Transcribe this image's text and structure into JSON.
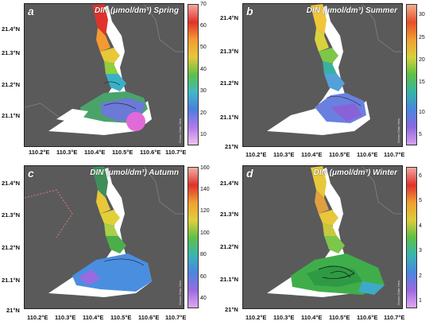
{
  "panels": [
    {
      "letter": "a",
      "title": "DIN (μmol/dm³)  Spring",
      "lat_labels": [
        "21.4°N",
        "21.3°N",
        "21.2°N",
        "21.1°N"
      ],
      "lon_labels": [
        "110.2°E",
        "110.3°E",
        "110.4°E",
        "110.5°E",
        "110.6°E",
        "110.7°E"
      ],
      "colorbar_ticks": [
        "70",
        "60",
        "50",
        "40",
        "30",
        "20",
        "10"
      ],
      "colorbar_range": [
        5,
        70
      ],
      "credit": "Ocean Data View",
      "scheme": "spring"
    },
    {
      "letter": "b",
      "title": "DIN (μmol/dm³)  Summer",
      "lat_labels": [
        "21.4°N",
        "21.3°N",
        "21.2°N",
        "21.1°N",
        "21°N"
      ],
      "lon_labels": [
        "110.2°E",
        "110.3°E",
        "110.4°E",
        "110.5°E",
        "110.6°E",
        "110.7°E"
      ],
      "colorbar_ticks": [
        "30",
        "25",
        "20",
        "15",
        "10",
        "5"
      ],
      "colorbar_range": [
        2,
        33
      ],
      "credit": "Ocean Data View",
      "scheme": "summer"
    },
    {
      "letter": "c",
      "title": "DIN (μmol/dm³)  Autumn",
      "lat_labels": [
        "21.4°N",
        "21.3°N",
        "21.2°N",
        "21.1°N",
        "21°N"
      ],
      "lon_labels": [
        "110.2°E",
        "110.3°E",
        "110.4°E",
        "110.5°E",
        "110.6°E",
        "110.7°E"
      ],
      "colorbar_ticks": [
        "160",
        "140",
        "120",
        "100",
        "80",
        "60",
        "40"
      ],
      "colorbar_range": [
        40,
        160
      ],
      "credit": "Ocean Data View",
      "scheme": "autumn"
    },
    {
      "letter": "d",
      "title": "DIN (μmol/dm³)  Winter",
      "lat_labels": [
        "21.4°N",
        "21.3°N",
        "21.2°N",
        "21.1°N",
        "21°N"
      ],
      "lon_labels": [
        "110.2°E",
        "110.3°E",
        "110.4°E",
        "110.5°E",
        "110.6°E",
        "110.7°E"
      ],
      "colorbar_ticks": [
        "6",
        "5",
        "4",
        "3",
        "2",
        "1"
      ],
      "colorbar_range": [
        1,
        6.5
      ],
      "credit": "Ocean Data View",
      "scheme": "winter"
    }
  ]
}
